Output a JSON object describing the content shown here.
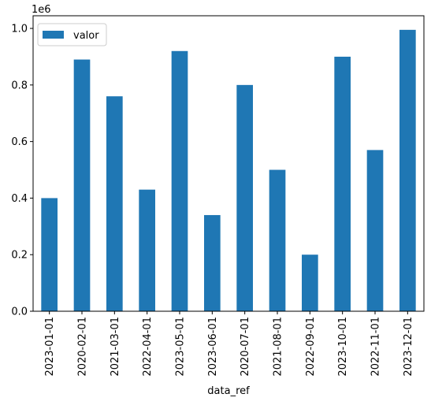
{
  "chart_data": {
    "type": "bar",
    "categories": [
      "2023-01-01",
      "2020-02-01",
      "2021-03-01",
      "2022-04-01",
      "2023-05-01",
      "2023-06-01",
      "2020-07-01",
      "2021-08-01",
      "2022-09-01",
      "2023-10-01",
      "2022-11-01",
      "2023-12-01"
    ],
    "series": [
      {
        "name": "valor",
        "values": [
          400000,
          890000,
          760000,
          430000,
          920000,
          340000,
          800000,
          500000,
          200000,
          900000,
          570000,
          995000
        ]
      }
    ],
    "title": "",
    "xlabel": "data_ref",
    "ylabel": "",
    "ylim": [
      0,
      1044750
    ],
    "yticks": [
      0,
      200000,
      400000,
      600000,
      800000,
      1000000
    ],
    "ytick_labels": [
      "0.0",
      "0.2",
      "0.4",
      "0.6",
      "0.8",
      "1.0"
    ],
    "y_offset_text": "1e6",
    "grid": false,
    "legend_position": "upper-left",
    "bar_color": "#1f77b4"
  }
}
